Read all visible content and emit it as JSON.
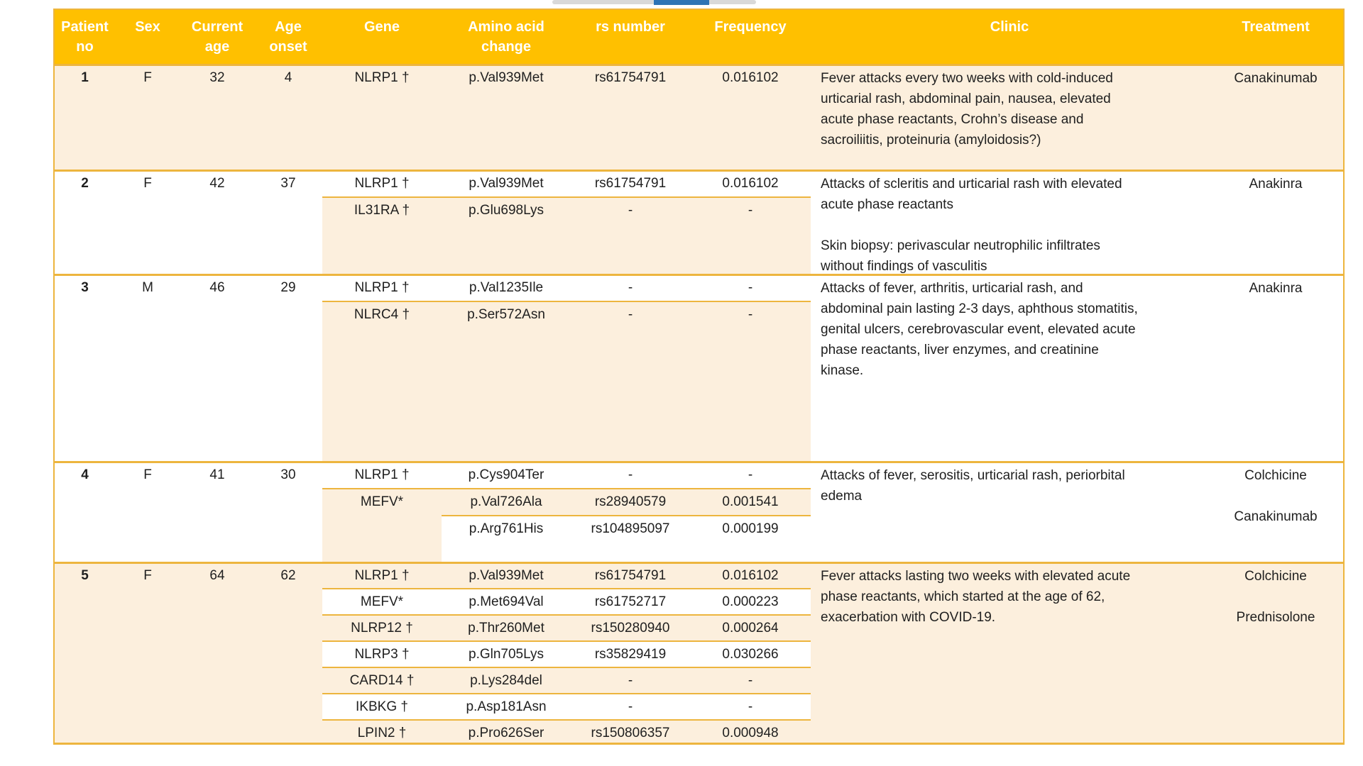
{
  "page": {
    "background": "#FFFFFF"
  },
  "scroll_indicator": {
    "track_color": "#D9D9D9",
    "thumb_color": "#2E74B5"
  },
  "table": {
    "colors": {
      "header_bg": "#FFC000",
      "header_text": "#FFFFFF",
      "stripe": "#FCEFDD",
      "line": "#EDB53E",
      "text": "#1F1F1F"
    },
    "header": {
      "columns": [
        "Patient\nno",
        "Sex",
        "Current\nage",
        "Age\nonset",
        "Gene",
        "Amino acid\nchange",
        "rs number",
        "Frequency",
        "Clinic",
        "Treatment"
      ]
    },
    "patients": [
      {
        "no": "1",
        "sex": "F",
        "current_age": "32",
        "age_onset": "4",
        "variants": [
          {
            "gene": "NLRP1 †",
            "amino_acid_change": "p.Val939Met",
            "rs_number": "rs61754791",
            "frequency": "0.016102"
          }
        ],
        "clinic": "Fever attacks every two weeks with cold-induced urticarial rash, abdominal pain, nausea, elevated acute phase reactants, Crohn’s disease and sacroiliitis, proteinuria (amyloidosis?)",
        "treatment": [
          "Canakinumab"
        ]
      },
      {
        "no": "2",
        "sex": "F",
        "current_age": "42",
        "age_onset": "37",
        "variants": [
          {
            "gene": "NLRP1 †",
            "amino_acid_change": "p.Val939Met",
            "rs_number": "rs61754791",
            "frequency": "0.016102"
          },
          {
            "gene": "IL31RA †",
            "amino_acid_change": "p.Glu698Lys",
            "rs_number": "-",
            "frequency": "-"
          }
        ],
        "clinic": "Attacks of scleritis and urticarial rash with elevated acute phase reactants\n\nSkin biopsy: perivascular neutrophilic infiltrates without findings of vasculitis",
        "treatment": [
          "Anakinra"
        ]
      },
      {
        "no": "3",
        "sex": "M",
        "current_age": "46",
        "age_onset": "29",
        "variants": [
          {
            "gene": "NLRP1 †",
            "amino_acid_change": "p.Val1235Ile",
            "rs_number": "-",
            "frequency": "-"
          },
          {
            "gene": "NLRC4 †",
            "amino_acid_change": "p.Ser572Asn",
            "rs_number": "-",
            "frequency": "-"
          }
        ],
        "clinic": "Attacks of fever, arthritis, urticarial rash, and abdominal pain lasting 2-3 days, aphthous stomatitis, genital ulcers, cerebrovascular event, elevated acute phase reactants, liver enzymes, and creatinine kinase.",
        "treatment": [
          "Anakinra"
        ]
      },
      {
        "no": "4",
        "sex": "F",
        "current_age": "41",
        "age_onset": "30",
        "variants": [
          {
            "gene": "NLRP1 †",
            "amino_acid_change": "p.Cys904Ter",
            "rs_number": "-",
            "frequency": "-"
          },
          {
            "gene": "MEFV*",
            "amino_acid_change": "p.Val726Ala",
            "rs_number": "rs28940579",
            "frequency": "0.001541"
          },
          {
            "gene": null,
            "amino_acid_change": "p.Arg761His",
            "rs_number": "rs104895097",
            "frequency": "0.000199"
          }
        ],
        "clinic": "Attacks of fever, serositis, urticarial rash, periorbital edema",
        "treatment": [
          "Colchicine",
          "Canakinumab"
        ]
      },
      {
        "no": "5",
        "sex": "F",
        "current_age": "64",
        "age_onset": "62",
        "variants": [
          {
            "gene": "NLRP1 †",
            "amino_acid_change": "p.Val939Met",
            "rs_number": "rs61754791",
            "frequency": "0.016102"
          },
          {
            "gene": "MEFV*",
            "amino_acid_change": "p.Met694Val",
            "rs_number": "rs61752717",
            "frequency": "0.000223"
          },
          {
            "gene": "NLRP12 †",
            "amino_acid_change": "p.Thr260Met",
            "rs_number": "rs150280940",
            "frequency": "0.000264"
          },
          {
            "gene": "NLRP3 †",
            "amino_acid_change": "p.Gln705Lys",
            "rs_number": "rs35829419",
            "frequency": "0.030266"
          },
          {
            "gene": "CARD14 †",
            "amino_acid_change": "p.Lys284del",
            "rs_number": "-",
            "frequency": "-"
          },
          {
            "gene": "IKBKG †",
            "amino_acid_change": "p.Asp181Asn",
            "rs_number": "-",
            "frequency": "-"
          },
          {
            "gene": "LPIN2 †",
            "amino_acid_change": "p.Pro626Ser",
            "rs_number": "rs150806357",
            "frequency": "0.000948"
          }
        ],
        "clinic": "Fever attacks lasting two weeks with elevated acute phase reactants, which started at the age of 62, exacerbation with COVID-19.",
        "treatment": [
          "Colchicine",
          "Prednisolone"
        ]
      }
    ]
  }
}
